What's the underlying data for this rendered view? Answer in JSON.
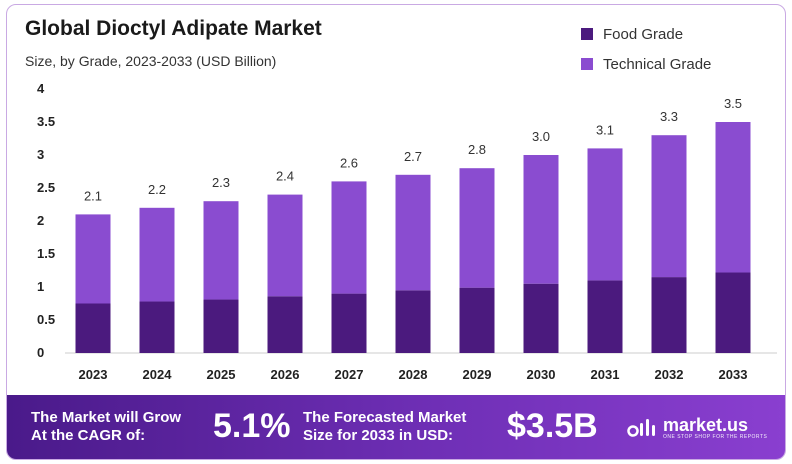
{
  "title": "Global Dioctyl Adipate Market",
  "subtitle": "Size, by Grade, 2023-2033 (USD Billion)",
  "colors": {
    "food": "#4b1a7e",
    "technical": "#8a4cd0",
    "border": "#c9a9e3"
  },
  "chart_data": {
    "type": "bar",
    "stacked": true,
    "title": "Global Dioctyl Adipate Market",
    "subtitle": "Size, by Grade, 2023-2033 (USD Billion)",
    "categories": [
      "2023",
      "2024",
      "2025",
      "2026",
      "2027",
      "2028",
      "2029",
      "2030",
      "2031",
      "2032",
      "2033"
    ],
    "series": [
      {
        "name": "Food Grade",
        "values": [
          0.75,
          0.78,
          0.81,
          0.86,
          0.9,
          0.95,
          0.99,
          1.05,
          1.1,
          1.15,
          1.22
        ]
      },
      {
        "name": "Technical Grade",
        "values": [
          1.35,
          1.42,
          1.49,
          1.54,
          1.7,
          1.75,
          1.81,
          1.95,
          2.0,
          2.15,
          2.28
        ]
      }
    ],
    "totals": [
      "2.1",
      "2.2",
      "2.3",
      "2.4",
      "2.6",
      "2.7",
      "2.8",
      "3.0",
      "3.1",
      "3.3",
      "3.5"
    ],
    "yticks": [
      "0",
      "0.5",
      "1",
      "1.5",
      "2",
      "2.5",
      "3",
      "3.5",
      "4"
    ],
    "ylim": [
      0,
      4
    ],
    "legend_position": "top-right"
  },
  "legend": [
    {
      "label": "Food Grade",
      "color": "#4b1a7e"
    },
    {
      "label": "Technical Grade",
      "color": "#8a4cd0"
    }
  ],
  "footer": {
    "cagr_text_line1": "The Market will Grow",
    "cagr_text_line2": "At the CAGR of:",
    "cagr_value": "5.1%",
    "forecast_text_line1": "The Forecasted Market",
    "forecast_text_line2": "Size for 2033 in USD:",
    "forecast_value": "$3.5B",
    "brand_name": "market.us",
    "brand_tagline": "ONE STOP SHOP FOR THE REPORTS"
  }
}
